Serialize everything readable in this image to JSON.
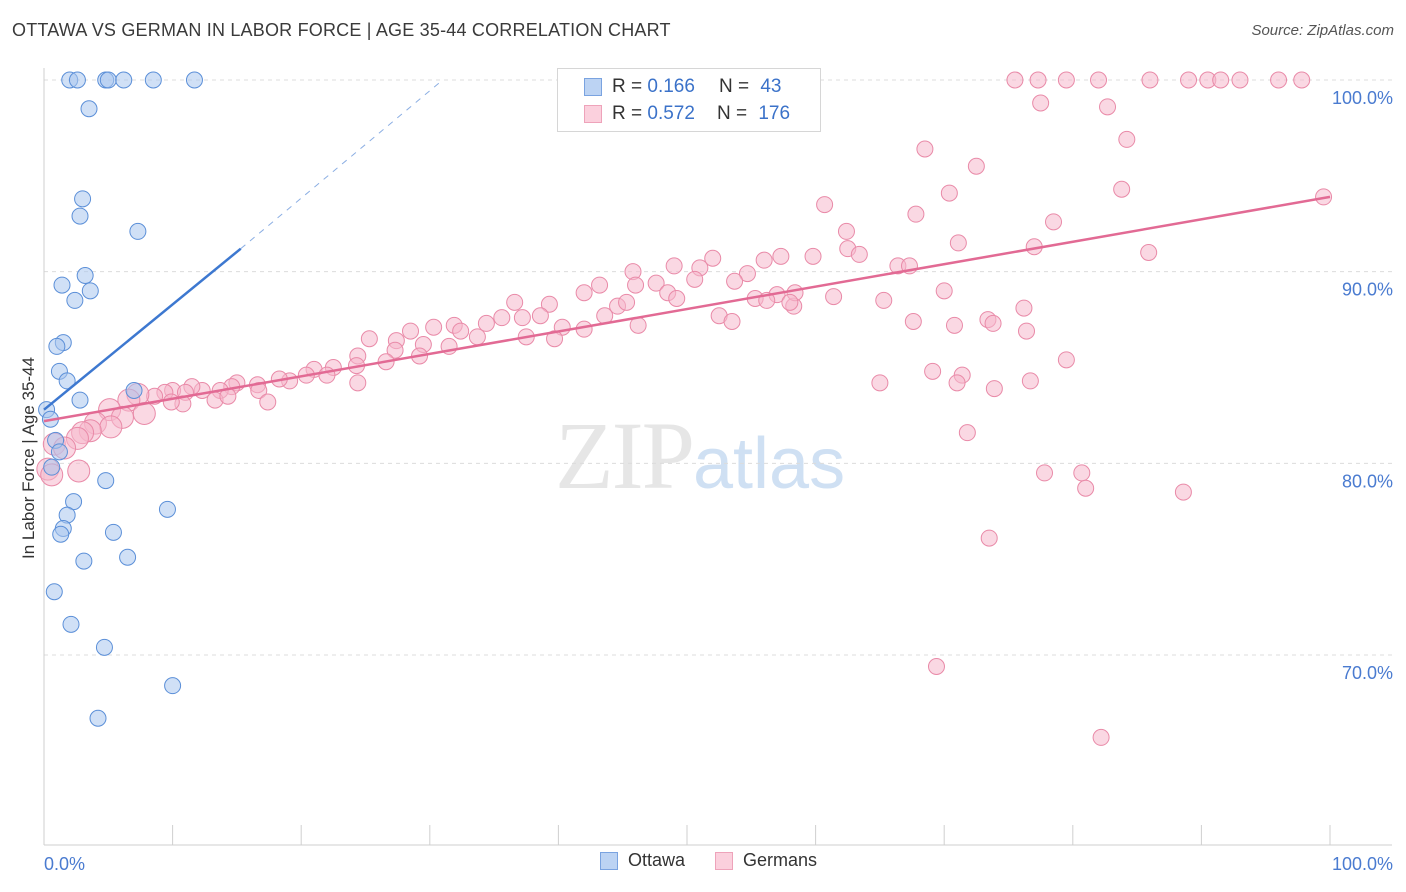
{
  "title": "OTTAWA VS GERMAN IN LABOR FORCE | AGE 35-44 CORRELATION CHART",
  "source": "Source: ZipAtlas.com",
  "watermark": {
    "zip": "ZIP",
    "atlas": "atlas"
  },
  "legend": {
    "rows": [
      {
        "r_label": "R = ",
        "r_value": "0.166",
        "n_label": "N = ",
        "n_value": "43",
        "color": "#a9c6ef"
      },
      {
        "r_label": "R = ",
        "r_value": "0.572",
        "n_label": "N = ",
        "n_value": "176",
        "color": "#f6b8cc"
      }
    ]
  },
  "bottom_legend": [
    {
      "label": "Ottawa",
      "color": "#a9c6ef"
    },
    {
      "label": "Germans",
      "color": "#f6b8cc"
    }
  ],
  "chart_data": {
    "type": "scatter",
    "title": "OTTAWA VS GERMAN IN LABOR FORCE | AGE 35-44 CORRELATION CHART",
    "xlabel": "",
    "ylabel": "In Labor Force | Age 35-44",
    "xlim": [
      0,
      100
    ],
    "ylim": [
      60,
      103
    ],
    "x_tick_labels": [
      "0.0%",
      "100.0%"
    ],
    "y_ticks": [
      70,
      80,
      90,
      100
    ],
    "y_tick_labels": [
      "70.0%",
      "80.0%",
      "90.0%",
      "100.0%"
    ],
    "grid": true,
    "series": [
      {
        "name": "Ottawa",
        "color": "#a9c6ef",
        "stroke": "#5b8fd8",
        "trend": {
          "x": [
            0,
            15.3
          ],
          "y": [
            82.8,
            91.2
          ],
          "color": "#3d78d0",
          "dashed_extension_to": [
            31,
            100
          ]
        },
        "points": [
          [
            2.0,
            100
          ],
          [
            2.6,
            100
          ],
          [
            4.8,
            100
          ],
          [
            5.0,
            100
          ],
          [
            6.2,
            100
          ],
          [
            8.5,
            100
          ],
          [
            11.7,
            100
          ],
          [
            3.5,
            98.5
          ],
          [
            3.0,
            93.8
          ],
          [
            2.8,
            92.9
          ],
          [
            7.3,
            92.1
          ],
          [
            3.2,
            89.8
          ],
          [
            1.4,
            89.3
          ],
          [
            3.6,
            89.0
          ],
          [
            2.4,
            88.5
          ],
          [
            1.5,
            86.3
          ],
          [
            1.0,
            86.1
          ],
          [
            1.2,
            84.8
          ],
          [
            1.8,
            84.3
          ],
          [
            7.0,
            83.8
          ],
          [
            2.8,
            83.3
          ],
          [
            0.2,
            82.8
          ],
          [
            0.5,
            82.3
          ],
          [
            0.9,
            81.2
          ],
          [
            1.2,
            80.6
          ],
          [
            0.6,
            79.8
          ],
          [
            4.8,
            79.1
          ],
          [
            2.3,
            78.0
          ],
          [
            1.8,
            77.3
          ],
          [
            1.5,
            76.6
          ],
          [
            1.3,
            76.3
          ],
          [
            5.4,
            76.4
          ],
          [
            9.6,
            77.6
          ],
          [
            6.5,
            75.1
          ],
          [
            3.1,
            74.9
          ],
          [
            0.8,
            73.3
          ],
          [
            2.1,
            71.6
          ],
          [
            4.7,
            70.4
          ],
          [
            10.0,
            68.4
          ],
          [
            4.2,
            66.7
          ]
        ]
      },
      {
        "name": "Germans",
        "color": "#f6b8cc",
        "stroke": "#e98aa8",
        "trend": {
          "x": [
            0,
            100
          ],
          "y": [
            82.2,
            93.9
          ],
          "color": "#e26a94"
        },
        "points": [
          [
            75.5,
            100
          ],
          [
            77.3,
            100
          ],
          [
            79.5,
            100
          ],
          [
            82.0,
            100
          ],
          [
            86,
            100
          ],
          [
            89,
            100
          ],
          [
            90.5,
            100
          ],
          [
            91.5,
            100
          ],
          [
            93,
            100
          ],
          [
            96,
            100
          ],
          [
            97.8,
            100
          ],
          [
            77.5,
            98.8
          ],
          [
            82.7,
            98.6
          ],
          [
            84.2,
            96.9
          ],
          [
            68.5,
            96.4
          ],
          [
            72.5,
            95.5
          ],
          [
            83.8,
            94.3
          ],
          [
            70.4,
            94.1
          ],
          [
            99.5,
            93.9
          ],
          [
            60.7,
            93.5
          ],
          [
            67.8,
            93.0
          ],
          [
            78.5,
            92.6
          ],
          [
            62.4,
            92.1
          ],
          [
            59.8,
            90.8
          ],
          [
            71.1,
            91.5
          ],
          [
            77.0,
            91.3
          ],
          [
            85.9,
            91.0
          ],
          [
            62.5,
            91.2
          ],
          [
            63.4,
            90.9
          ],
          [
            57.3,
            90.8
          ],
          [
            56.0,
            90.6
          ],
          [
            52.0,
            90.7
          ],
          [
            66.4,
            90.3
          ],
          [
            67.3,
            90.3
          ],
          [
            49.0,
            90.3
          ],
          [
            51.0,
            90.2
          ],
          [
            45.8,
            90.0
          ],
          [
            54.7,
            89.9
          ],
          [
            50.6,
            89.6
          ],
          [
            53.7,
            89.5
          ],
          [
            46.0,
            89.3
          ],
          [
            43.2,
            89.3
          ],
          [
            42.0,
            88.9
          ],
          [
            47.6,
            89.4
          ],
          [
            48.5,
            88.9
          ],
          [
            49.2,
            88.6
          ],
          [
            55.3,
            88.6
          ],
          [
            57.0,
            88.8
          ],
          [
            58.3,
            88.2
          ],
          [
            56.2,
            88.5
          ],
          [
            58.4,
            88.9
          ],
          [
            61.4,
            88.7
          ],
          [
            58.0,
            88.4
          ],
          [
            65.3,
            88.5
          ],
          [
            70.0,
            89.0
          ],
          [
            39.3,
            88.3
          ],
          [
            44.6,
            88.2
          ],
          [
            36.6,
            88.4
          ],
          [
            34.4,
            87.3
          ],
          [
            35.6,
            87.6
          ],
          [
            37.2,
            87.6
          ],
          [
            38.6,
            87.7
          ],
          [
            45.3,
            88.4
          ],
          [
            46.2,
            87.2
          ],
          [
            40.3,
            87.1
          ],
          [
            42.0,
            87.0
          ],
          [
            43.6,
            87.7
          ],
          [
            31.9,
            87.2
          ],
          [
            32.4,
            86.9
          ],
          [
            33.7,
            86.6
          ],
          [
            30.3,
            87.1
          ],
          [
            28.5,
            86.9
          ],
          [
            25.3,
            86.5
          ],
          [
            27.4,
            86.4
          ],
          [
            29.5,
            86.2
          ],
          [
            31.5,
            86.1
          ],
          [
            37.5,
            86.6
          ],
          [
            39.7,
            86.5
          ],
          [
            52.5,
            87.7
          ],
          [
            53.5,
            87.4
          ],
          [
            67.6,
            87.4
          ],
          [
            70.8,
            87.2
          ],
          [
            76.2,
            88.1
          ],
          [
            73.4,
            87.5
          ],
          [
            73.8,
            87.3
          ],
          [
            76.4,
            86.9
          ],
          [
            27.3,
            85.9
          ],
          [
            24.4,
            85.6
          ],
          [
            24.3,
            85.1
          ],
          [
            26.6,
            85.3
          ],
          [
            22.5,
            85.0
          ],
          [
            21.0,
            84.9
          ],
          [
            29.2,
            85.6
          ],
          [
            79.5,
            85.4
          ],
          [
            20.4,
            84.6
          ],
          [
            19.1,
            84.3
          ],
          [
            18.3,
            84.4
          ],
          [
            15.0,
            84.2
          ],
          [
            14.6,
            84.0
          ],
          [
            13.7,
            83.8
          ],
          [
            12.3,
            83.8
          ],
          [
            11.5,
            84.0
          ],
          [
            10.0,
            83.8
          ],
          [
            9.4,
            83.7
          ],
          [
            8.6,
            83.5
          ],
          [
            7.3,
            83.6
          ],
          [
            6.6,
            83.3
          ],
          [
            16.6,
            84.1
          ],
          [
            16.7,
            83.8
          ],
          [
            13.3,
            83.3
          ],
          [
            11.0,
            83.7
          ],
          [
            10.8,
            83.1
          ],
          [
            9.9,
            83.2
          ],
          [
            17.4,
            83.2
          ],
          [
            14.3,
            83.5
          ],
          [
            69.1,
            84.8
          ],
          [
            71.4,
            84.6
          ],
          [
            65.0,
            84.2
          ],
          [
            71.0,
            84.2
          ],
          [
            76.7,
            84.3
          ],
          [
            24.4,
            84.2
          ],
          [
            22.0,
            84.6
          ],
          [
            5.1,
            82.8
          ],
          [
            6.1,
            82.4
          ],
          [
            7.8,
            82.6
          ],
          [
            4.0,
            82.1
          ],
          [
            5.2,
            81.9
          ],
          [
            3.6,
            81.7
          ],
          [
            3.0,
            81.6
          ],
          [
            2.6,
            81.3
          ],
          [
            0.8,
            81.0
          ],
          [
            1.6,
            80.8
          ],
          [
            0.3,
            79.7
          ],
          [
            0.6,
            79.4
          ],
          [
            2.7,
            79.6
          ],
          [
            71.8,
            81.6
          ],
          [
            77.8,
            79.5
          ],
          [
            80.7,
            79.5
          ],
          [
            81.0,
            78.7
          ],
          [
            88.6,
            78.5
          ],
          [
            73.9,
            83.9
          ],
          [
            69.4,
            69.4
          ],
          [
            73.5,
            76.1
          ],
          [
            82.2,
            65.7
          ]
        ]
      }
    ]
  }
}
